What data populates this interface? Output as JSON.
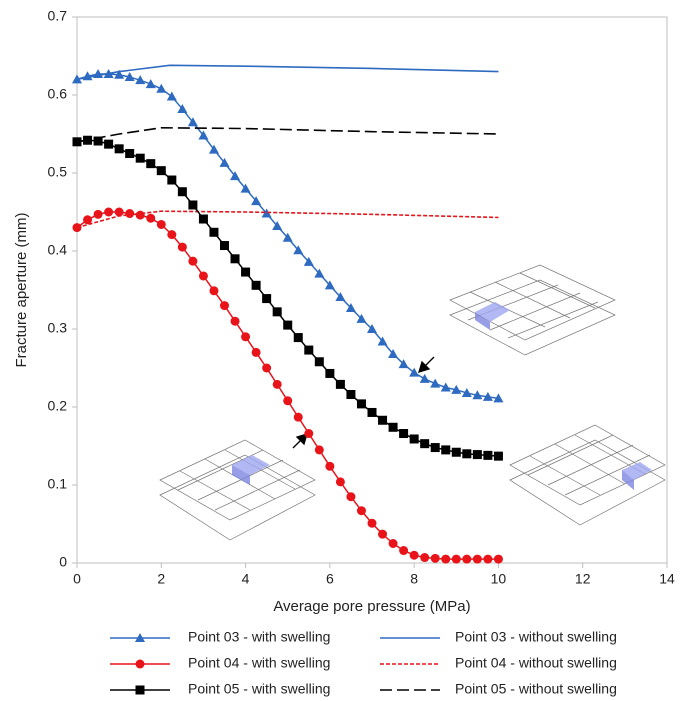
{
  "chart_data": {
    "type": "line",
    "x_label": "Average pore pressure (MPa)",
    "y_label": "Fracture aperture (mm)",
    "xlim": [
      0,
      14
    ],
    "xticks": [
      0,
      2,
      4,
      6,
      8,
      10,
      12,
      14
    ],
    "ylim": [
      0,
      0.7
    ],
    "yticks": [
      0,
      0.1,
      0.2,
      0.3,
      0.4,
      0.5,
      0.6,
      0.7
    ],
    "grid": false,
    "series": [
      {
        "name": "Point 03 - with swelling",
        "color": "#2e6bc0",
        "marker": "triangle",
        "linestyle": "solid",
        "x": [
          0,
          0.25,
          0.5,
          0.75,
          1,
          1.25,
          1.5,
          1.75,
          2,
          2.25,
          2.5,
          2.75,
          3,
          3.25,
          3.5,
          3.75,
          4,
          4.25,
          4.5,
          4.75,
          5,
          5.25,
          5.5,
          5.75,
          6,
          6.25,
          6.5,
          6.75,
          7,
          7.25,
          7.5,
          7.75,
          8,
          8.25,
          8.5,
          8.75,
          9,
          9.25,
          9.5,
          9.75,
          10
        ],
        "values": [
          0.62,
          0.624,
          0.627,
          0.627,
          0.626,
          0.623,
          0.619,
          0.614,
          0.608,
          0.598,
          0.582,
          0.565,
          0.548,
          0.53,
          0.513,
          0.496,
          0.48,
          0.464,
          0.448,
          0.432,
          0.417,
          0.401,
          0.386,
          0.371,
          0.356,
          0.341,
          0.327,
          0.313,
          0.3,
          0.284,
          0.268,
          0.255,
          0.244,
          0.236,
          0.23,
          0.225,
          0.222,
          0.218,
          0.215,
          0.213,
          0.211
        ]
      },
      {
        "name": "Point 03 - without swelling",
        "color": "#2e6bc0",
        "marker": "none",
        "linestyle": "solid",
        "x": [
          0,
          1,
          2.2,
          4,
          7,
          10
        ],
        "values": [
          0.62,
          0.63,
          0.638,
          0.637,
          0.634,
          0.63
        ]
      },
      {
        "name": "Point 04 - with swelling",
        "color": "#e8141a",
        "marker": "circle",
        "linestyle": "solid",
        "x": [
          0,
          0.25,
          0.5,
          0.75,
          1,
          1.25,
          1.5,
          1.75,
          2,
          2.25,
          2.5,
          2.75,
          3,
          3.25,
          3.5,
          3.75,
          4,
          4.25,
          4.5,
          4.75,
          5,
          5.25,
          5.5,
          5.75,
          6,
          6.25,
          6.5,
          6.75,
          7,
          7.25,
          7.5,
          7.75,
          8,
          8.25,
          8.5,
          8.75,
          9,
          9.25,
          9.5,
          9.75,
          10
        ],
        "values": [
          0.43,
          0.44,
          0.447,
          0.45,
          0.45,
          0.448,
          0.446,
          0.442,
          0.434,
          0.421,
          0.405,
          0.387,
          0.368,
          0.349,
          0.33,
          0.31,
          0.29,
          0.27,
          0.25,
          0.229,
          0.208,
          0.187,
          0.166,
          0.145,
          0.124,
          0.104,
          0.085,
          0.067,
          0.051,
          0.037,
          0.025,
          0.016,
          0.01,
          0.007,
          0.006,
          0.005,
          0.005,
          0.005,
          0.005,
          0.005,
          0.005
        ]
      },
      {
        "name": "Point 04 - without swelling",
        "color": "#e8141a",
        "marker": "none",
        "linestyle": "short-dash",
        "x": [
          0,
          1,
          2,
          4,
          7,
          10
        ],
        "values": [
          0.43,
          0.445,
          0.451,
          0.45,
          0.447,
          0.443
        ]
      },
      {
        "name": "Point 05 - with swelling",
        "color": "#000000",
        "marker": "square",
        "linestyle": "solid",
        "x": [
          0,
          0.25,
          0.5,
          0.75,
          1,
          1.25,
          1.5,
          1.75,
          2,
          2.25,
          2.5,
          2.75,
          3,
          3.25,
          3.5,
          3.75,
          4,
          4.25,
          4.5,
          4.75,
          5,
          5.25,
          5.5,
          5.75,
          6,
          6.25,
          6.5,
          6.75,
          7,
          7.25,
          7.5,
          7.75,
          8,
          8.25,
          8.5,
          8.75,
          9,
          9.25,
          9.5,
          9.75,
          10
        ],
        "values": [
          0.54,
          0.542,
          0.541,
          0.537,
          0.531,
          0.525,
          0.519,
          0.512,
          0.503,
          0.491,
          0.476,
          0.459,
          0.441,
          0.424,
          0.407,
          0.39,
          0.373,
          0.356,
          0.339,
          0.322,
          0.305,
          0.289,
          0.273,
          0.258,
          0.243,
          0.229,
          0.216,
          0.204,
          0.193,
          0.183,
          0.174,
          0.166,
          0.159,
          0.153,
          0.148,
          0.145,
          0.142,
          0.14,
          0.139,
          0.138,
          0.137
        ]
      },
      {
        "name": "Point 05 - without swelling",
        "color": "#000000",
        "marker": "none",
        "linestyle": "long-dash",
        "x": [
          0,
          1,
          2,
          4,
          7,
          10
        ],
        "values": [
          0.54,
          0.55,
          0.558,
          0.557,
          0.553,
          0.55
        ]
      }
    ]
  }
}
